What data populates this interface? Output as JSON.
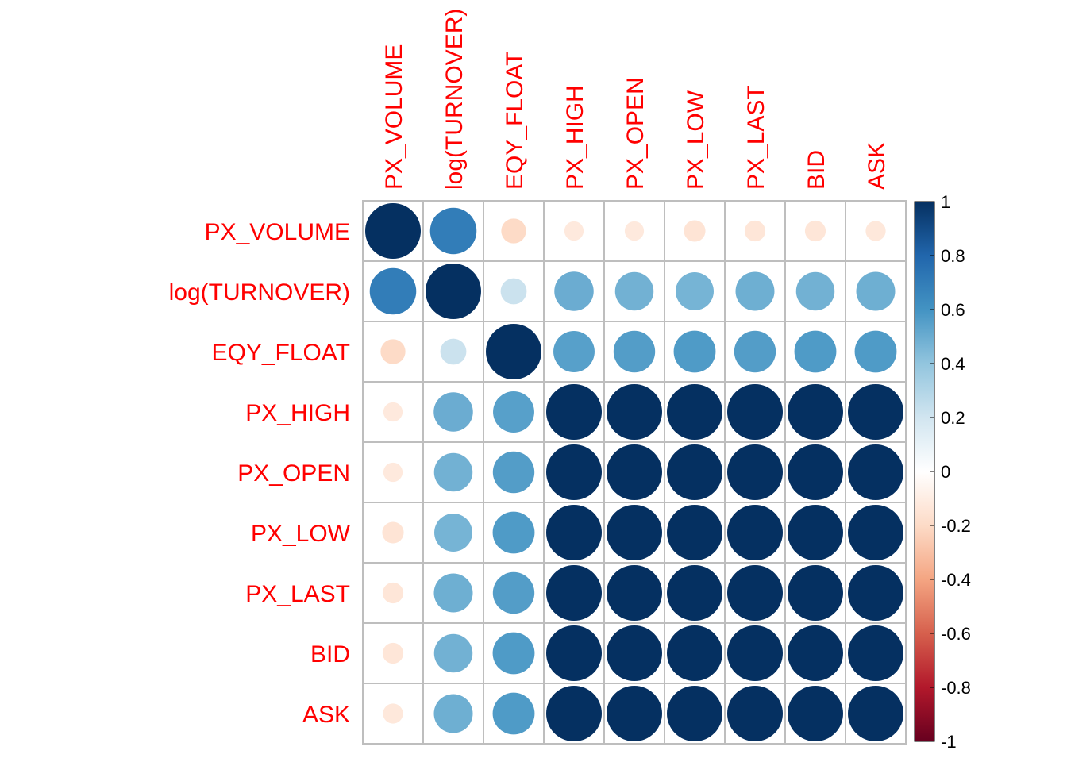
{
  "chart_data": {
    "type": "heatmap",
    "subtype": "correlation-circles",
    "variables": [
      "PX_VOLUME",
      "log(TURNOVER)",
      "EQY_FLOAT",
      "PX_HIGH",
      "PX_OPEN",
      "PX_LOW",
      "PX_LAST",
      "BID",
      "ASK"
    ],
    "matrix": [
      [
        1.0,
        0.7,
        -0.2,
        -0.12,
        -0.12,
        -0.15,
        -0.14,
        -0.14,
        -0.13
      ],
      [
        0.7,
        1.0,
        0.22,
        0.5,
        0.48,
        0.47,
        0.49,
        0.48,
        0.49
      ],
      [
        -0.2,
        0.22,
        1.0,
        0.55,
        0.56,
        0.57,
        0.56,
        0.57,
        0.57
      ],
      [
        -0.12,
        0.5,
        0.55,
        1.0,
        1.0,
        1.0,
        1.0,
        1.0,
        1.0
      ],
      [
        -0.12,
        0.48,
        0.56,
        1.0,
        1.0,
        1.0,
        1.0,
        1.0,
        1.0
      ],
      [
        -0.15,
        0.47,
        0.57,
        1.0,
        1.0,
        1.0,
        1.0,
        1.0,
        1.0
      ],
      [
        -0.14,
        0.49,
        0.56,
        1.0,
        1.0,
        1.0,
        1.0,
        1.0,
        1.0
      ],
      [
        -0.14,
        0.48,
        0.57,
        1.0,
        1.0,
        1.0,
        1.0,
        1.0,
        1.0
      ],
      [
        -0.13,
        0.49,
        0.57,
        1.0,
        1.0,
        1.0,
        1.0,
        1.0,
        1.0
      ]
    ],
    "color_scale": {
      "range": [
        -1,
        1
      ],
      "ticks": [
        "1",
        "0.8",
        "0.6",
        "0.4",
        "0.2",
        "0",
        "-0.2",
        "-0.4",
        "-0.6",
        "-0.8",
        "-1"
      ],
      "stops": [
        "#67001F",
        "#B2182B",
        "#D6604D",
        "#F4A582",
        "#FDDBC7",
        "#FFFFFF",
        "#D1E5F0",
        "#92C5DE",
        "#4393C3",
        "#2166AC",
        "#053061"
      ]
    },
    "label_color": "#FF0000",
    "grid": true,
    "legend": "right"
  }
}
